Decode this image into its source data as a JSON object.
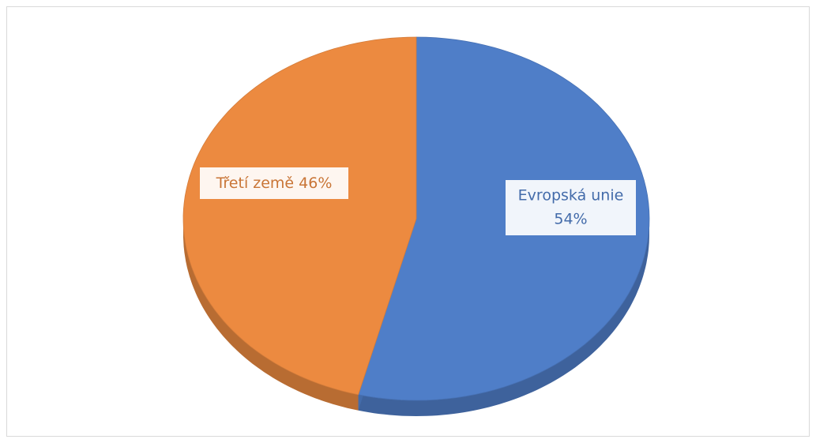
{
  "chart_data": {
    "type": "pie",
    "categories": [
      "Evropská unie",
      "Třetí země"
    ],
    "values": [
      54,
      46
    ],
    "value_labels": [
      "54%",
      "46%"
    ],
    "colors": [
      "#4f7ec8",
      "#ec8a40"
    ]
  }
}
